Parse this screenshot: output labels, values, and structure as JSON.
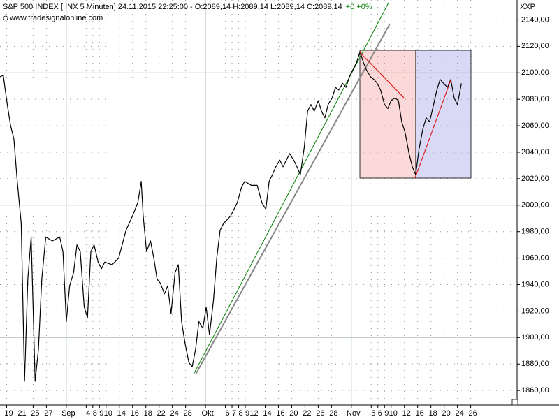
{
  "chart_data": {
    "type": "line",
    "title": "S&P 500 INDEX [.INX  5 Minuten] 24.11.2015 22:25:00 - O:2089,14 H:2089,14 L:2089,14 C:2089,14",
    "change": "+0 +0%",
    "subtitle": "www.tradesignalonline.com",
    "symbol": "XXP",
    "color": "#000000",
    "change_color": "#008000",
    "grid": true,
    "x": [
      -1.0,
      -0.5,
      0.1,
      0.6,
      1.1,
      1.6,
      2.2,
      2.7,
      3.2,
      3.7,
      4.3,
      4.8,
      5.3,
      5.9,
      6.9,
      8.0,
      8.5,
      9.0,
      9.5,
      10.1,
      10.6,
      11.1,
      11.7,
      12.2,
      12.7,
      13.2,
      13.8,
      14.3,
      14.8,
      15.9,
      16.9,
      18.0,
      19.0,
      19.8,
      20.3,
      20.6,
      21.1,
      21.7,
      22.2,
      22.7,
      23.2,
      23.8,
      24.3,
      24.8,
      25.4,
      25.9,
      26.4,
      26.9,
      27.5,
      28.0,
      28.5,
      29.0,
      29.6,
      30.1,
      30.6,
      31.2,
      31.7,
      32.2,
      32.7,
      33.8,
      34.8,
      35.4,
      35.9,
      36.9,
      37.8,
      38.5,
      39.1,
      39.6,
      40.1,
      40.6,
      41.2,
      41.7,
      42.2,
      42.7,
      43.3,
      43.8,
      44.3,
      44.9,
      45.4,
      45.9,
      46.4,
      47.0,
      47.5,
      48.0,
      48.5,
      49.1,
      49.6,
      50.1,
      50.7,
      51.2,
      51.7,
      52.2,
      52.8,
      53.3,
      53.8,
      54.3,
      54.9,
      55.4,
      55.9,
      56.4,
      57.0,
      57.5,
      58.0,
      58.6,
      59.1,
      59.6,
      60.1,
      60.7,
      61.2,
      61.7,
      62.2,
      62.8,
      63.3,
      63.8,
      64.4,
      64.9,
      65.4,
      65.9,
      66.5,
      67.0,
      67.5,
      68.0,
      68.6
    ],
    "values": [
      2097,
      2098,
      2076,
      2060,
      2050,
      2018,
      1986,
      1867,
      1944,
      1976,
      1867,
      1891,
      1944,
      1976,
      1973,
      1976,
      1965,
      1912,
      1939,
      1949,
      1970,
      1965,
      1923,
      1915,
      1965,
      1970,
      1957,
      1952,
      1957,
      1955,
      1960,
      1981,
      1992,
      2002,
      2018,
      1992,
      1965,
      1973,
      1960,
      1944,
      1941,
      1933,
      1939,
      1918,
      1949,
      1955,
      1912,
      1896,
      1881,
      1878,
      1891,
      1912,
      1907,
      1923,
      1902,
      1928,
      1960,
      1981,
      1986,
      1992,
      2002,
      2013,
      2018,
      2015,
      2015,
      2002,
      1997,
      2018,
      2023,
      2029,
      2034,
      2029,
      2034,
      2039,
      2034,
      2029,
      2023,
      2044,
      2071,
      2076,
      2071,
      2079,
      2071,
      2066,
      2076,
      2081,
      2089,
      2087,
      2092,
      2089,
      2097,
      2102,
      2108,
      2116,
      2108,
      2102,
      2097,
      2095,
      2092,
      2087,
      2076,
      2073,
      2079,
      2081,
      2079,
      2063,
      2055,
      2039,
      2029,
      2023,
      2042,
      2058,
      2066,
      2063,
      2076,
      2087,
      2095,
      2092,
      2089,
      2095,
      2081,
      2076,
      2092
    ],
    "xlim": [
      -1,
      77
    ],
    "ylim": [
      1849,
      2155
    ],
    "yticks": [
      {
        "value": 1860,
        "label": "1860,00"
      },
      {
        "value": 1880,
        "label": "1880,00"
      },
      {
        "value": 1900,
        "label": "1900,00"
      },
      {
        "value": 1920,
        "label": "1920,00"
      },
      {
        "value": 1940,
        "label": "1940,00"
      },
      {
        "value": 1960,
        "label": "1960,00"
      },
      {
        "value": 1980,
        "label": "1980,00"
      },
      {
        "value": 2000,
        "label": "2000,00"
      },
      {
        "value": 2020,
        "label": "2020,00"
      },
      {
        "value": 2040,
        "label": "2040,00"
      },
      {
        "value": 2060,
        "label": "2060,00"
      },
      {
        "value": 2080,
        "label": "2080,00"
      },
      {
        "value": 2100,
        "label": "2100,00"
      },
      {
        "value": 2120,
        "label": "2120,00"
      },
      {
        "value": 2140,
        "label": "2140,00"
      }
    ],
    "xticks": [
      {
        "value": 0,
        "label": "19"
      },
      {
        "value": 2,
        "label": "21"
      },
      {
        "value": 4,
        "label": "25"
      },
      {
        "value": 6,
        "label": "27"
      },
      {
        "value": 9,
        "label": "Sep"
      },
      {
        "value": 12,
        "label": "4"
      },
      {
        "value": 13,
        "label": "8"
      },
      {
        "value": 14,
        "label": "9"
      },
      {
        "value": 15,
        "label": "10"
      },
      {
        "value": 17,
        "label": "14"
      },
      {
        "value": 19,
        "label": "16"
      },
      {
        "value": 21,
        "label": "18"
      },
      {
        "value": 23,
        "label": "22"
      },
      {
        "value": 25,
        "label": "24"
      },
      {
        "value": 27,
        "label": "28"
      },
      {
        "value": 30,
        "label": "Okt"
      },
      {
        "value": 33,
        "label": "6"
      },
      {
        "value": 34,
        "label": "7"
      },
      {
        "value": 35,
        "label": "8"
      },
      {
        "value": 36,
        "label": "9"
      },
      {
        "value": 37,
        "label": "12"
      },
      {
        "value": 39,
        "label": "14"
      },
      {
        "value": 41,
        "label": "16"
      },
      {
        "value": 43,
        "label": "20"
      },
      {
        "value": 45,
        "label": "22"
      },
      {
        "value": 47,
        "label": "26"
      },
      {
        "value": 49,
        "label": "28"
      },
      {
        "value": 52,
        "label": "Nov"
      },
      {
        "value": 55,
        "label": "5"
      },
      {
        "value": 56,
        "label": "6"
      },
      {
        "value": 57,
        "label": "9"
      },
      {
        "value": 58,
        "label": "10"
      },
      {
        "value": 60,
        "label": "12"
      },
      {
        "value": 62,
        "label": "16"
      },
      {
        "value": 64,
        "label": "18"
      },
      {
        "value": 66,
        "label": "20"
      },
      {
        "value": 68,
        "label": "24"
      },
      {
        "value": 70,
        "label": "26"
      }
    ]
  }
}
